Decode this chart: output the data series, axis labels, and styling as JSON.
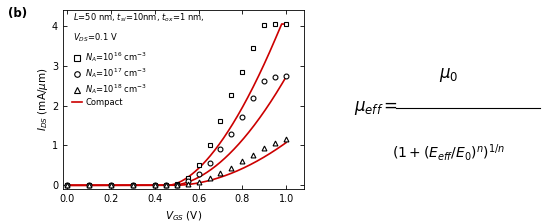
{
  "vgs_markers": [
    0.0,
    0.1,
    0.2,
    0.3,
    0.4,
    0.45,
    0.5,
    0.55,
    0.6,
    0.65,
    0.7,
    0.75,
    0.8,
    0.85,
    0.9,
    0.95,
    1.0
  ],
  "ids_Na16_sim": [
    0.0,
    0.0,
    0.0,
    0.0,
    0.0,
    0.0,
    0.04,
    0.18,
    0.52,
    1.0,
    1.62,
    2.28,
    2.85,
    3.45,
    4.02,
    4.05,
    4.05
  ],
  "ids_Na17_sim": [
    0.0,
    0.0,
    0.0,
    0.0,
    0.0,
    0.0,
    0.02,
    0.1,
    0.28,
    0.55,
    0.9,
    1.28,
    1.72,
    2.18,
    2.62,
    2.72,
    2.75
  ],
  "ids_Na18_sim": [
    0.0,
    0.0,
    0.0,
    0.0,
    0.0,
    0.0,
    0.0,
    0.03,
    0.09,
    0.18,
    0.3,
    0.44,
    0.6,
    0.76,
    0.93,
    1.05,
    1.17
  ],
  "line_color": "#cc0000",
  "marker_color": "black",
  "bg_color": "#ffffff",
  "xlabel": "$V_{GS}$ (V)",
  "ylabel": "$I_{DS}$ (mA/$\\mu$m)",
  "ylim": [
    -0.1,
    4.4
  ],
  "xlim": [
    -0.02,
    1.08
  ],
  "yticks": [
    0,
    1,
    2,
    3,
    4
  ],
  "xticks": [
    0.0,
    0.2,
    0.4,
    0.6,
    0.8,
    1.0
  ],
  "annot_line1": "$L$=50 nm, $t_{si}$=10nm, $t_{ox}$=1 nm,",
  "annot_line2": "$V_{DS}$=0.1 V",
  "label_Na16": "$N_A$=10$^{16}$ cm$^{-3}$",
  "label_Na17": "$N_A$=10$^{17}$ cm$^{-3}$",
  "label_Na18": "$N_A$=10$^{18}$ cm$^{-3}$",
  "label_compact": "Compact",
  "panel_label": "(b)"
}
